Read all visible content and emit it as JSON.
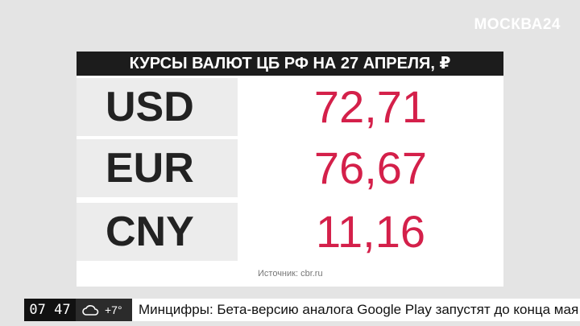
{
  "logo": "МОСКВА24",
  "table": {
    "title": "КУРСЫ ВАЛЮТ ЦБ РФ НА 27 АПРЕЛЯ, ₽",
    "rows": [
      [
        "USD",
        "72,71"
      ],
      [
        "EUR",
        "76,67"
      ],
      [
        "CNY",
        "11,16"
      ]
    ],
    "source": "Источник: cbr.ru"
  },
  "ticker": {
    "time": "07 47",
    "weather": "+7°",
    "headline": "Минцифры: Бета-версию аналога Google Play запустят до конца мая"
  }
}
